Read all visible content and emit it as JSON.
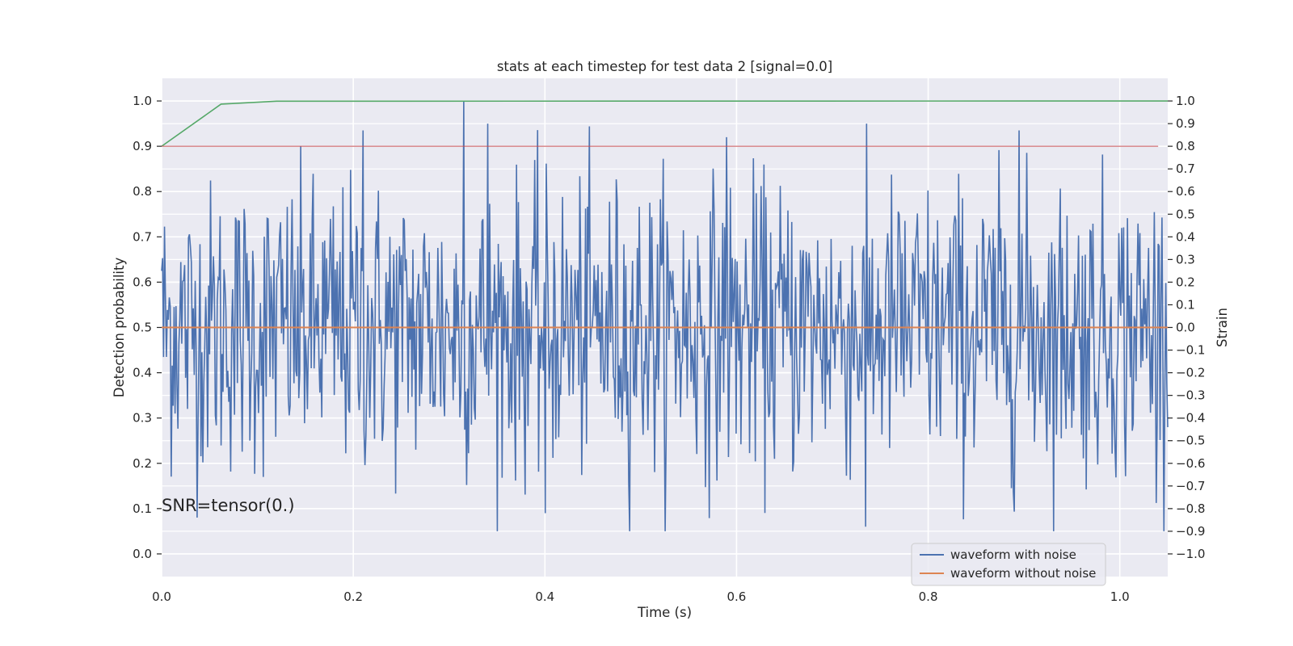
{
  "chart_data": {
    "type": "line",
    "title": "stats at each timestep for test data 2 [signal=0.0]",
    "xlabel": "Time (s)",
    "ylabel": "Detection probability",
    "y2label": "Strain",
    "annotation": "SNR=tensor(0.)",
    "xlim": [
      0.0,
      1.05
    ],
    "ylim": [
      -0.05,
      1.05
    ],
    "y2lim": [
      -1.1,
      1.1
    ],
    "grid": true,
    "legend_position": "lower-right",
    "x_ticks": [
      0.0,
      0.2,
      0.4,
      0.6,
      0.8,
      1.0
    ],
    "x_tick_labels": [
      "0.0",
      "0.2",
      "0.4",
      "0.6",
      "0.8",
      "1.0"
    ],
    "y_ticks": [
      0.0,
      0.1,
      0.2,
      0.3,
      0.4,
      0.5,
      0.6,
      0.7,
      0.8,
      0.9,
      1.0
    ],
    "y_tick_labels": [
      "0.0",
      "0.1",
      "0.2",
      "0.3",
      "0.4",
      "0.5",
      "0.6",
      "0.7",
      "0.8",
      "0.9",
      "1.0"
    ],
    "y2_ticks": [
      1.0,
      0.9,
      0.8,
      0.7,
      0.6,
      0.5,
      0.4,
      0.3,
      0.2,
      0.1,
      0.0,
      -0.1,
      -0.2,
      -0.3,
      -0.4,
      -0.5,
      -0.6,
      -0.7,
      -0.8,
      -0.9,
      -1.0
    ],
    "y2_tick_labels": [
      "1.0",
      "0.9",
      "0.8",
      "0.7",
      "0.6",
      "0.5",
      "0.4",
      "0.3",
      "0.2",
      "0.1",
      "0.0",
      "−0.1",
      "−0.2",
      "−0.3",
      "−0.4",
      "−0.5",
      "−0.6",
      "−0.7",
      "−0.8",
      "−0.9",
      "−1.0"
    ],
    "series": [
      {
        "name": "waveform with noise",
        "axis": "right",
        "color": "#4c72b0",
        "x_range": [
          0.0,
          1.05
        ],
        "num_points": 1050,
        "highlight_values": [
          {
            "x": 0.0,
            "y": 0.25
          },
          {
            "x": 0.21,
            "y": 0.87
          },
          {
            "x": 0.315,
            "y": 1.0
          },
          {
            "x": 0.34,
            "y": 0.9
          },
          {
            "x": 0.4,
            "y": -0.82
          },
          {
            "x": 0.59,
            "y": 0.84
          },
          {
            "x": 0.735,
            "y": -0.88
          },
          {
            "x": 0.895,
            "y": 0.87
          }
        ]
      },
      {
        "name": "waveform without noise",
        "axis": "right",
        "color": "#dd8452",
        "x": [
          0.0,
          1.05
        ],
        "y": [
          0.0,
          0.0
        ]
      },
      {
        "axis": "left",
        "color": "#55a868",
        "x": [
          0.0,
          0.062,
          0.12,
          1.05
        ],
        "y": [
          0.9,
          0.993,
          0.9995,
          1.0
        ]
      },
      {
        "axis": "left",
        "color": "#c44e52",
        "x": [
          0.0,
          1.04
        ],
        "y": [
          0.9,
          0.9
        ]
      }
    ]
  },
  "colors": {
    "plot_background": "#eaeaf2",
    "grid": "#ffffff",
    "text": "#262626"
  }
}
